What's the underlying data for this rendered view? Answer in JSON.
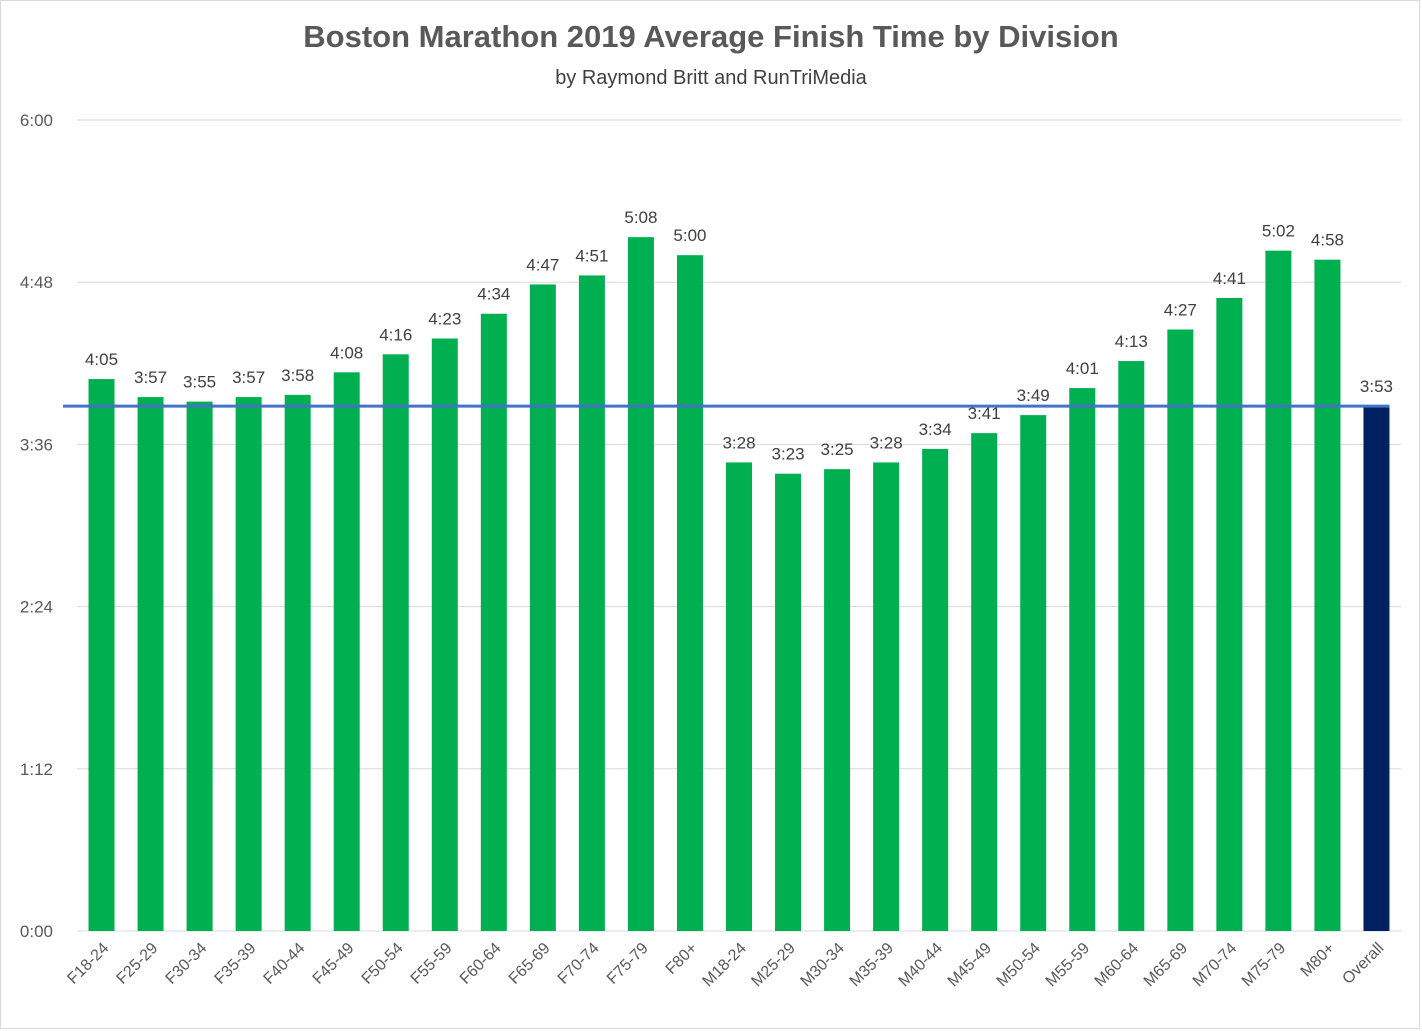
{
  "chart_data": {
    "type": "bar",
    "title": "Boston Marathon 2019 Average Finish Time by Division",
    "subtitle": "by Raymond Britt and RunTriMedia",
    "xlabel": "",
    "ylabel": "",
    "y_unit": "minutes",
    "ylim": [
      0,
      360
    ],
    "yticks": [
      {
        "value": 0,
        "label": "0:00"
      },
      {
        "value": 72,
        "label": "1:12"
      },
      {
        "value": 144,
        "label": "2:24"
      },
      {
        "value": 216,
        "label": "3:36"
      },
      {
        "value": 288,
        "label": "4:48"
      },
      {
        "value": 360,
        "label": "6:00"
      }
    ],
    "grid": true,
    "legend": "none",
    "categories": [
      "F18-24",
      "F25-29",
      "F30-34",
      "F35-39",
      "F40-44",
      "F45-49",
      "F50-54",
      "F55-59",
      "F60-64",
      "F65-69",
      "F70-74",
      "F75-79",
      "F80+",
      "M18-24",
      "M25-29",
      "M30-34",
      "M35-39",
      "M40-44",
      "M45-49",
      "M50-54",
      "M55-59",
      "M60-64",
      "M65-69",
      "M70-74",
      "M75-79",
      "M80+",
      "Overall"
    ],
    "values": [
      245,
      237,
      235,
      237,
      238,
      248,
      256,
      263,
      274,
      287,
      291,
      308,
      300,
      208,
      203,
      205,
      208,
      214,
      221,
      229,
      241,
      253,
      267,
      281,
      302,
      298,
      233
    ],
    "data_labels": [
      "4:05",
      "3:57",
      "3:55",
      "3:57",
      "3:58",
      "4:08",
      "4:16",
      "4:23",
      "4:34",
      "4:47",
      "4:51",
      "5:08",
      "5:00",
      "3:28",
      "3:23",
      "3:25",
      "3:28",
      "3:34",
      "3:41",
      "3:49",
      "4:01",
      "4:13",
      "4:27",
      "4:41",
      "5:02",
      "4:58",
      "3:53"
    ],
    "reference_line": {
      "value": 233
    },
    "colors": {
      "bar": "#00b050",
      "highlight_bar": "#002060",
      "reference_line": "#4472c4",
      "grid": "#d9d9d9"
    },
    "highlight_category": "Overall"
  }
}
